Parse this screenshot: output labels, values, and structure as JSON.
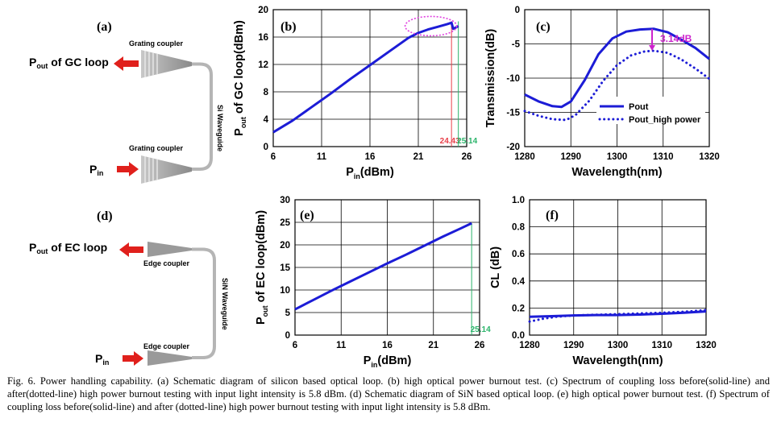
{
  "figure": {
    "caption": "Fig. 6. Power handling capability. (a) Schematic diagram of silicon based optical loop. (b) high optical power burnout test. (c) Spectrum of coupling loss before(solid-line) and after(dotted-line) high power burnout testing with input light intensity is 5.8 dBm. (d) Schematic diagram of SiN based optical loop. (e) high optical power burnout test. (f) Spectrum of coupling loss before(solid-line) and after (dotted-line) high power burnout testing with input light intensity is 5.8 dBm."
  },
  "schematic_a": {
    "panel": "(a)",
    "output_label": "P",
    "output_sub": "out",
    "output_rest": " of GC loop",
    "input_label": "P",
    "input_sub": "in",
    "top_coupler": "Grating coupler",
    "bottom_coupler": "Grating coupler",
    "waveguide": "Si Waveguide"
  },
  "schematic_d": {
    "panel": "(d)",
    "output_label": "P",
    "output_sub": "out",
    "output_rest": " of EC loop",
    "input_label": "P",
    "input_sub": "in",
    "top_coupler": "Edge coupler",
    "bottom_coupler": "Edge coupler",
    "waveguide": "SiN Waveguide"
  },
  "colors": {
    "line": "#1c1cd6",
    "arrow": "#e0201c",
    "marker_red": "#e8404a",
    "marker_green": "#2ab36a",
    "ellipse": "#e040e0",
    "annot": "#cc22cc"
  },
  "chart_data": [
    {
      "id": "b",
      "type": "line",
      "panel": "(b)",
      "xlabel": "P",
      "xlabel_sub": "in",
      "xlabel_rest": "(dBm)",
      "ylabel": "P",
      "ylabel_sub": "out",
      "ylabel_rest": " of GC loop(dBm)",
      "xlim": [
        6,
        26
      ],
      "ylim": [
        0,
        20
      ],
      "xticks": [
        6,
        11,
        16,
        21,
        26
      ],
      "yticks": [
        0,
        4,
        8,
        12,
        16,
        20
      ],
      "grid": true,
      "series": [
        {
          "style": "solid",
          "x": [
            6,
            8,
            10,
            12,
            14,
            16,
            18,
            20,
            21,
            22,
            23,
            24,
            24.43,
            24.6,
            25.14
          ],
          "y": [
            2.1,
            3.8,
            5.8,
            7.8,
            9.9,
            11.9,
            13.9,
            15.9,
            16.6,
            17.1,
            17.5,
            17.9,
            18.1,
            17.2,
            17.6
          ]
        }
      ],
      "markers": [
        {
          "x": 24.43,
          "label": "24.43",
          "color": "red"
        },
        {
          "x": 25.14,
          "label": "25.14",
          "color": "green"
        }
      ],
      "ellipse": {
        "x": 22.3,
        "y": 17.6
      }
    },
    {
      "id": "c",
      "type": "line",
      "panel": "(c)",
      "xlabel": "Wavelength(nm)",
      "ylabel": "Transmission(dB)",
      "xlim": [
        1280,
        1320
      ],
      "ylim": [
        -20,
        0
      ],
      "xticks": [
        1280,
        1290,
        1300,
        1310,
        1320
      ],
      "yticks": [
        0,
        -5,
        -10,
        -15,
        -20
      ],
      "grid": true,
      "series": [
        {
          "name": "Pout",
          "style": "solid",
          "x": [
            1280,
            1283,
            1286,
            1288,
            1290,
            1293,
            1296,
            1299,
            1302,
            1305,
            1308,
            1311,
            1314,
            1317,
            1320
          ],
          "y": [
            -12.4,
            -13.4,
            -14.1,
            -14.2,
            -13.4,
            -10.3,
            -6.5,
            -4.2,
            -3.2,
            -2.9,
            -2.8,
            -3.3,
            -4.4,
            -5.6,
            -7.2
          ]
        },
        {
          "name": "Pout_high power",
          "style": "dotted",
          "x": [
            1280,
            1283,
            1286,
            1289,
            1291,
            1294,
            1297,
            1300,
            1303,
            1306,
            1308,
            1311,
            1314,
            1317,
            1320
          ],
          "y": [
            -14.8,
            -15.5,
            -16.0,
            -16.1,
            -15.4,
            -13.3,
            -10.4,
            -8.1,
            -6.7,
            -6.1,
            -6.0,
            -6.3,
            -7.3,
            -8.6,
            -10.1
          ]
        }
      ],
      "annotation": {
        "label": "3.14dB",
        "x": 1307.6,
        "y_top": -2.8,
        "y_bottom": -6.0
      },
      "legend": "bottom-right"
    },
    {
      "id": "e",
      "type": "line",
      "panel": "(e)",
      "xlabel": "P",
      "xlabel_sub": "in",
      "xlabel_rest": "(dBm)",
      "ylabel": "P",
      "ylabel_sub": "out",
      "ylabel_rest": " of EC loop(dBm)",
      "xlim": [
        6,
        26
      ],
      "ylim": [
        0,
        30
      ],
      "xticks": [
        6,
        11,
        16,
        21,
        26
      ],
      "yticks": [
        0,
        5,
        10,
        15,
        20,
        25,
        30
      ],
      "grid": true,
      "series": [
        {
          "style": "solid",
          "x": [
            6,
            8,
            10,
            12,
            14,
            16,
            18,
            20,
            22,
            24,
            25.14
          ],
          "y": [
            5.7,
            7.8,
            9.9,
            11.9,
            13.9,
            15.9,
            17.8,
            19.8,
            21.8,
            23.7,
            24.8
          ]
        }
      ],
      "markers": [
        {
          "x": 25.14,
          "label": "25.14",
          "color": "green"
        }
      ]
    },
    {
      "id": "f",
      "type": "line",
      "panel": "(f)",
      "xlabel": "Wavelength(nm)",
      "ylabel": "CL (dB)",
      "xlim": [
        1280,
        1320
      ],
      "ylim": [
        0,
        1
      ],
      "xticks": [
        1280,
        1290,
        1300,
        1310,
        1320
      ],
      "yticks": [
        "0.0",
        "0.2",
        "0.4",
        "0.6",
        "0.8",
        "1.0"
      ],
      "grid": true,
      "series": [
        {
          "style": "solid",
          "x": [
            1280,
            1285,
            1290,
            1295,
            1300,
            1305,
            1310,
            1315,
            1320
          ],
          "y": [
            0.135,
            0.14,
            0.145,
            0.148,
            0.148,
            0.152,
            0.158,
            0.165,
            0.175
          ]
        },
        {
          "style": "dotted",
          "x": [
            1280,
            1283,
            1286,
            1290,
            1295,
            1300,
            1305,
            1310,
            1315,
            1320
          ],
          "y": [
            0.1,
            0.12,
            0.135,
            0.145,
            0.15,
            0.155,
            0.16,
            0.165,
            0.172,
            0.185
          ]
        }
      ]
    }
  ]
}
